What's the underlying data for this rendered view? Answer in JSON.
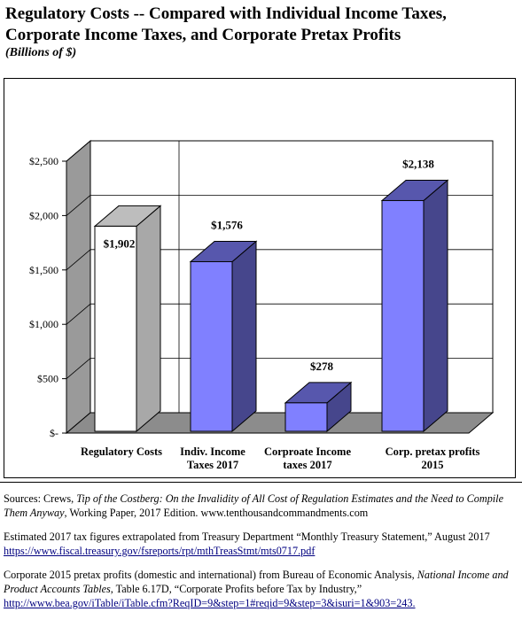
{
  "header": {
    "title": "Regulatory Costs -- Compared with Individual Income Taxes, Corporate Income Taxes, and Corporate Pretax Profits",
    "subtitle": "(Billions of $)"
  },
  "chart_data": {
    "type": "bar",
    "categories": [
      "Regulatory Costs",
      "Indiv.  Income Taxes 2017",
      "Corproate  Income taxes 2017",
      "Corp.  pretax  profits 2015"
    ],
    "category_lines": [
      [
        "Regulatory Costs"
      ],
      [
        "Indiv.  Income",
        "Taxes 2017"
      ],
      [
        "Corproate  Income",
        "taxes 2017"
      ],
      [
        "Corp.  pretax  profits",
        "2015"
      ]
    ],
    "values": [
      1902,
      1576,
      278,
      2138
    ],
    "data_labels": [
      "$1,902",
      "$1,576",
      "$278",
      "$2,138"
    ],
    "bar_colors": [
      "#ffffff",
      "#8080ff",
      "#8080ff",
      "#8080ff"
    ],
    "yticks": [
      0,
      500,
      1000,
      1500,
      2000,
      2500
    ],
    "ytick_labels": [
      "$-",
      "$500",
      "$1,000",
      "$1,500",
      "$2,000",
      "$2,500"
    ],
    "ylim": [
      0,
      2500
    ],
    "grid": true,
    "style": "3d"
  },
  "notes": {
    "sources_prefix": "Sources: Crews, ",
    "sources_title": "Tip of the Costberg: On the Invalidity of All Cost of Regulation Estimates and the Need to Compile Them Anyway",
    "sources_suffix": ", Working Paper, 2017 Edition. www.tenthousandcommandments.com",
    "tax_note": "Estimated 2017 tax figures extrapolated from Treasury Department “Monthly Treasury Statement,” August 2017",
    "tax_link": "https://www.fiscal.treasury.gov/fsreports/rpt/mthTreasStmt/mts0717.pdf",
    "profits_prefix": "Corporate 2015 pretax profits (domestic and international) from Bureau of Economic Analysis, ",
    "profits_title": "National Income and Product Accounts Tables",
    "profits_suffix": ", Table 6.17D, “Corporate Profits before Tax by Industry,”",
    "profits_link": "http://www.bea.gov/iTable/iTable.cfm?ReqID=9&step=1#reqid=9&step=3&isuri=1&903=243."
  }
}
